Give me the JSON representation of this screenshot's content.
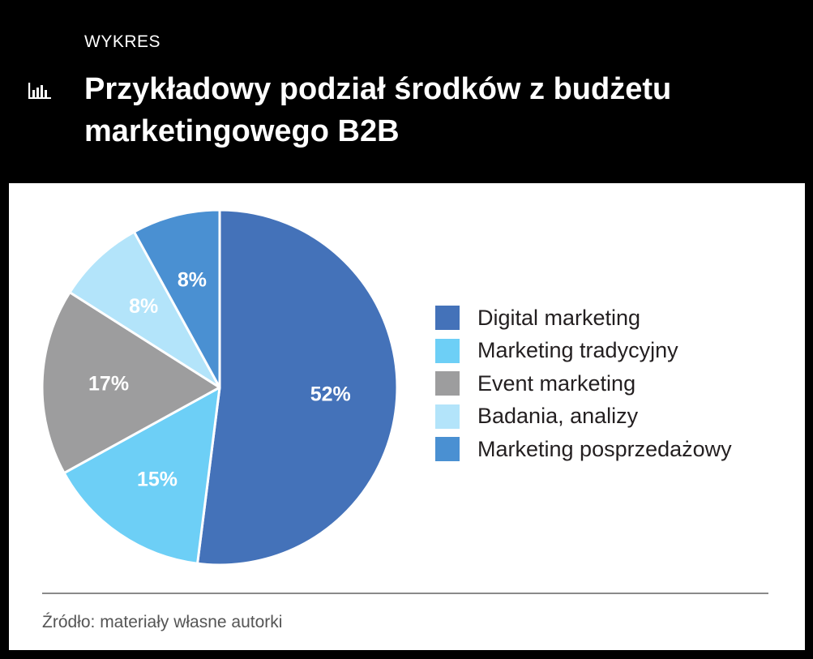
{
  "header": {
    "kicker": "WYKRES",
    "title": "Przykładowy podział środków z budżetu marketingowego B2B",
    "icon": "bar-chart-icon"
  },
  "colors": {
    "background": "#000000",
    "panel": "#ffffff",
    "series": [
      "#4472b9",
      "#6dcff6",
      "#9d9d9e",
      "#b3e4fa",
      "#4a90d2"
    ]
  },
  "chart_data": {
    "type": "pie",
    "categories": [
      "Digital marketing",
      "Marketing tradycyjny",
      "Event marketing",
      "Badania, analizy",
      "Marketing posprzedażowy"
    ],
    "values": [
      52,
      15,
      17,
      8,
      8
    ],
    "data_labels": [
      "52%",
      "15%",
      "17%",
      "8%",
      "8%"
    ],
    "unit": "%",
    "legend_placement": "right",
    "start_angle": "12 o'clock",
    "direction": "clockwise"
  },
  "footer": {
    "source": "Źródło: materiały własne autorki"
  }
}
